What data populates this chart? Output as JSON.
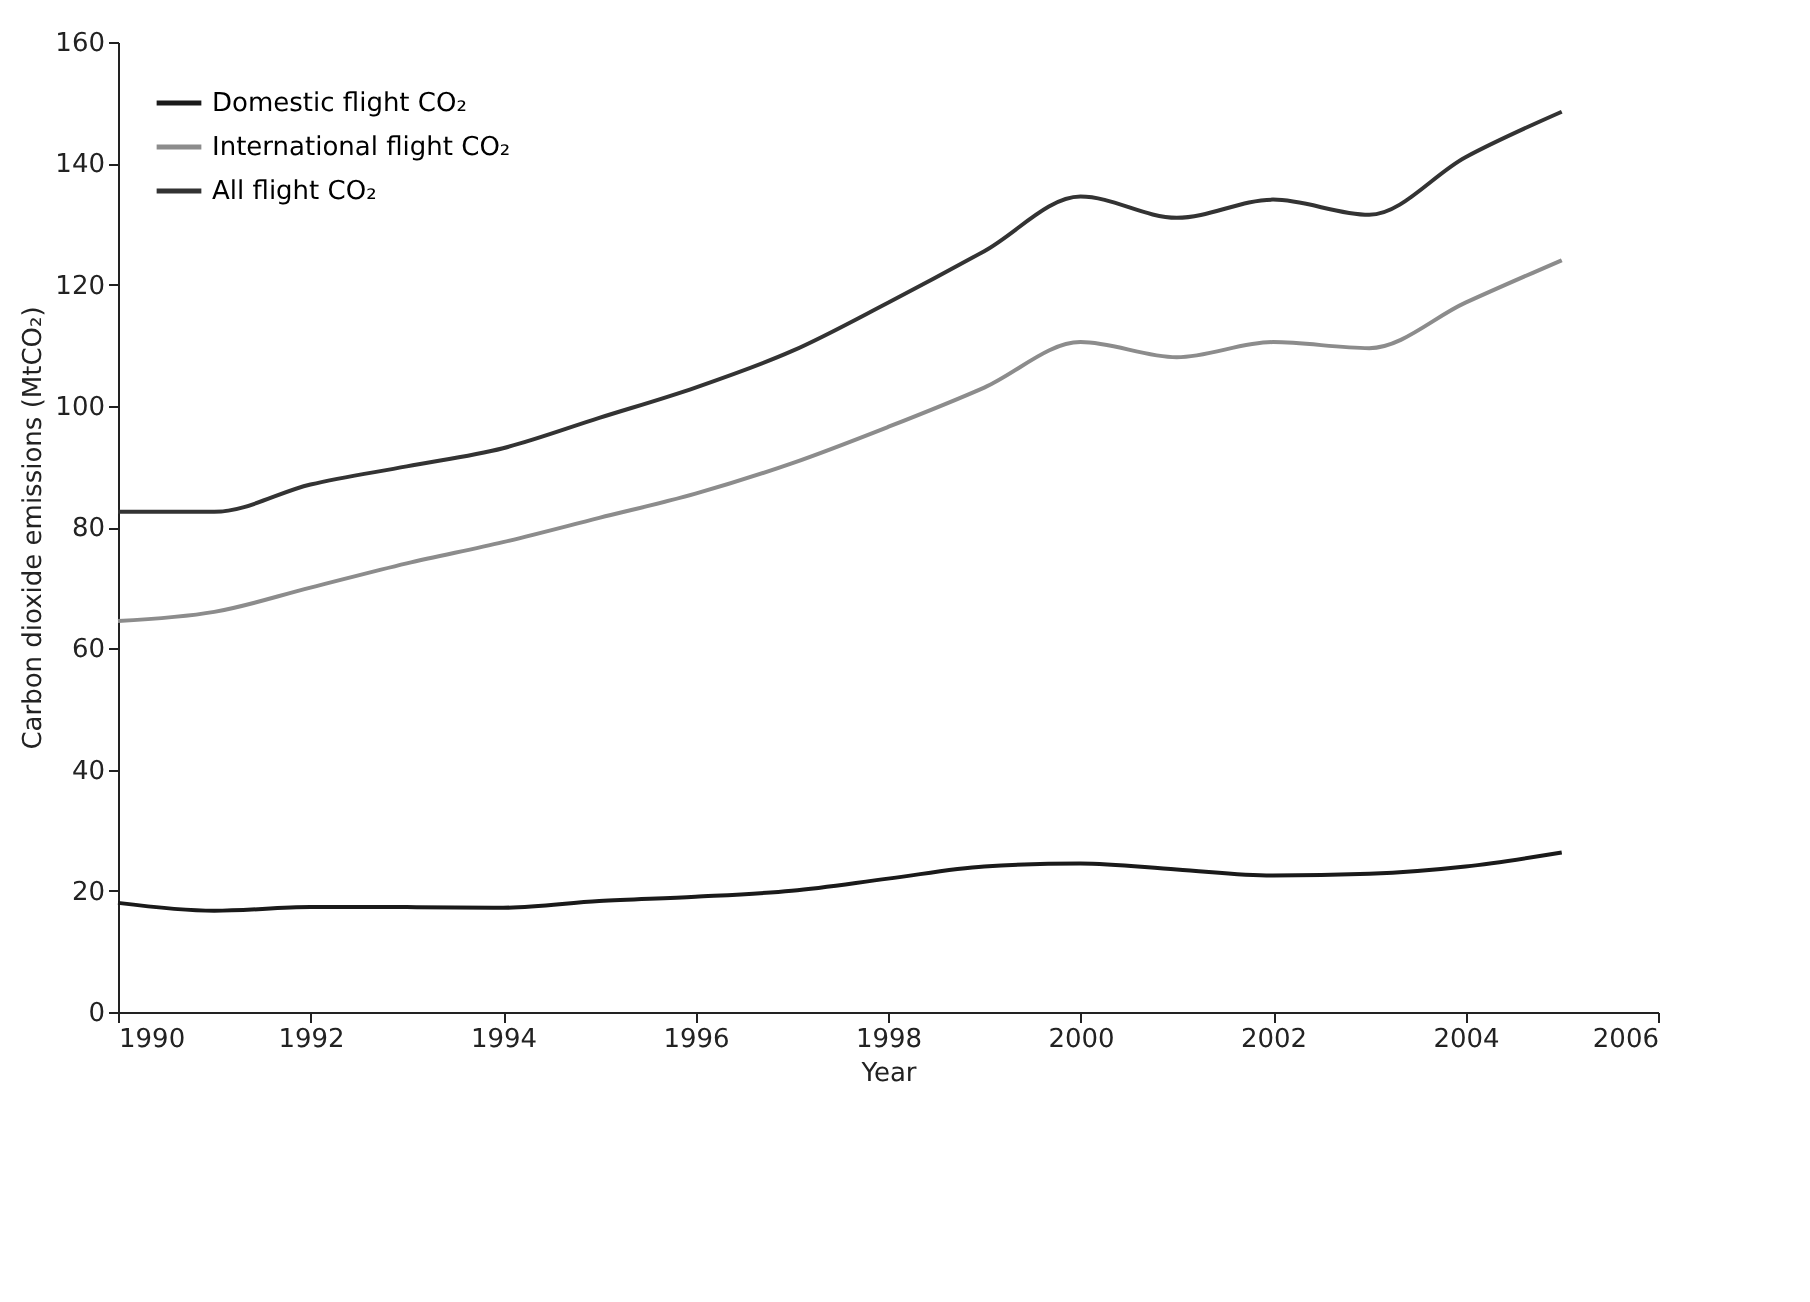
{
  "chart_data": {
    "type": "line",
    "xlabel": "Year",
    "ylabel": "Carbon dioxide emissions (MtCO₂)",
    "x": [
      1990,
      1991,
      1992,
      1993,
      1994,
      1995,
      1996,
      1997,
      1998,
      1999,
      2000,
      2001,
      2002,
      2003,
      2004,
      2005
    ],
    "series": [
      {
        "name": "Domestic flight CO₂",
        "color": "#1a1a1a",
        "values": [
          18,
          16.7,
          17.3,
          17.3,
          17.2,
          18.3,
          19,
          20,
          22,
          24,
          24.5,
          23.5,
          22.5,
          22.8,
          24,
          26.3
        ]
      },
      {
        "name": "International flight CO₂",
        "color": "#8c8c8c",
        "values": [
          64.5,
          66,
          70,
          74,
          77.5,
          81.5,
          85.5,
          90.5,
          96.5,
          103,
          110.5,
          108,
          110.5,
          109.5,
          117,
          124
        ]
      },
      {
        "name": "All flight CO₂",
        "color": "#333333",
        "values": [
          82.5,
          82.5,
          87,
          90,
          93,
          98,
          103,
          109,
          117,
          125.5,
          134.5,
          131,
          134,
          131.5,
          141,
          148.5
        ]
      }
    ],
    "xlim": [
      1990,
      2006
    ],
    "xticks": [
      1990,
      1992,
      1994,
      1996,
      1998,
      2000,
      2002,
      2004,
      2006
    ],
    "ylim": [
      0,
      160
    ],
    "yticks": [
      0,
      20,
      40,
      60,
      80,
      100,
      120,
      140,
      160
    ],
    "legend": "top left",
    "grid": false,
    "marker": "none",
    "line_style": "solid"
  }
}
